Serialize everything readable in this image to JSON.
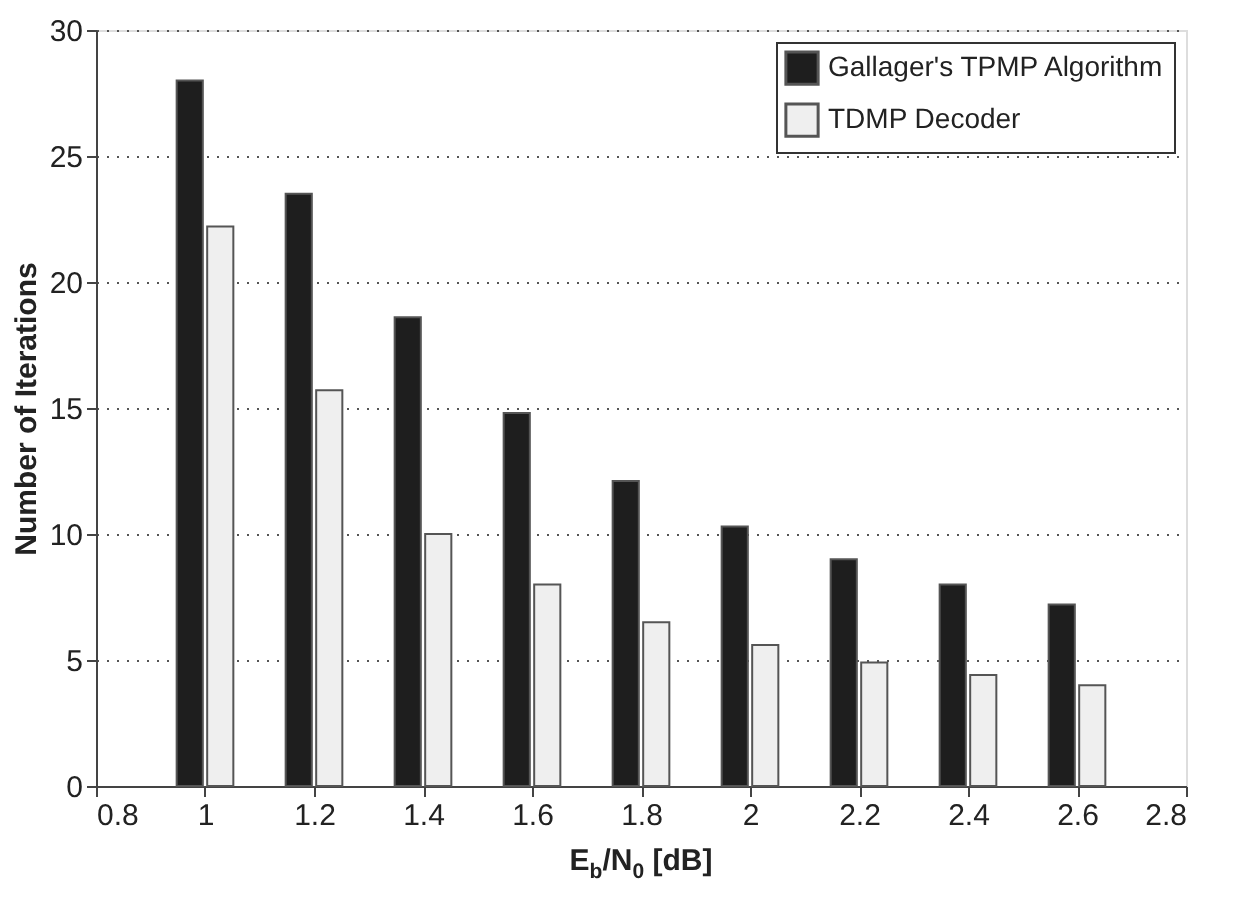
{
  "chart_data": {
    "type": "bar",
    "xlabel": "E$_{b}$/N$_{0}$ [dB]",
    "ylabel": "Number of Iterations",
    "x": [
      1,
      1.2,
      1.4,
      1.6,
      1.8,
      2,
      2.2,
      2.4,
      2.6
    ],
    "series": [
      {
        "name": "Gallager's TPMP Algorithm",
        "color": "#1e1e1e",
        "values": [
          28,
          23.5,
          18.6,
          14.8,
          12.1,
          10.3,
          9.0,
          8.0,
          7.2
        ]
      },
      {
        "name": "TDMP Decoder",
        "color": "#efefef",
        "values": [
          22.2,
          15.7,
          10.0,
          8.0,
          6.5,
          5.6,
          4.9,
          4.4,
          4.0
        ]
      }
    ],
    "xlim": [
      0.8,
      2.8
    ],
    "xticks": [
      0.8,
      1,
      1.2,
      1.4,
      1.6,
      1.8,
      2,
      2.2,
      2.4,
      2.6,
      2.8
    ],
    "ylim": [
      0,
      30
    ],
    "yticks": [
      0,
      5,
      10,
      15,
      20,
      25,
      30
    ],
    "grid": "y",
    "legend": "top right"
  }
}
